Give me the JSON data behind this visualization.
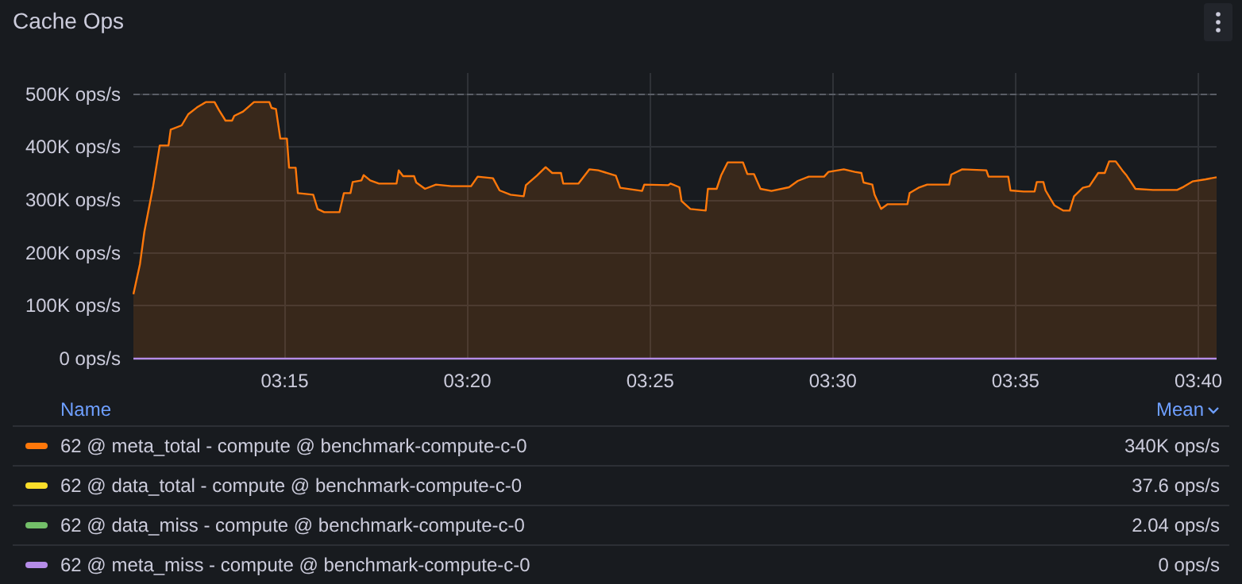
{
  "chart_data": {
    "type": "area",
    "title": "Cache Ops",
    "legend": "bottom",
    "grid": true,
    "marker": "none",
    "line_style": "solid",
    "xlim": [
      3.181,
      3.675
    ],
    "xticks": [
      {
        "value": 3.25,
        "label": "03:15"
      },
      {
        "value": 3.3333,
        "label": "03:20"
      },
      {
        "value": 3.4167,
        "label": "03:25"
      },
      {
        "value": 3.5,
        "label": "03:30"
      },
      {
        "value": 3.5833,
        "label": "03:35"
      },
      {
        "value": 3.6667,
        "label": "03:40"
      }
    ],
    "ylim": [
      0,
      540000
    ],
    "yticks": [
      {
        "value": 0,
        "label": "0 ops/s"
      },
      {
        "value": 100000,
        "label": "100K ops/s"
      },
      {
        "value": 200000,
        "label": "200K ops/s"
      },
      {
        "value": 300000,
        "label": "300K ops/s"
      },
      {
        "value": 400000,
        "label": "400K ops/s"
      },
      {
        "value": 500000,
        "label": "500K ops/s"
      }
    ],
    "ref_lines": [
      {
        "axis": "y",
        "value": 500000,
        "color": "#5a5e66",
        "line_style": "dashed"
      }
    ],
    "annotations": [
      "Name",
      "Mean",
      "340K ops/s",
      "37.6 ops/s",
      "2.04 ops/s",
      "0 ops/s"
    ],
    "series": [
      {
        "name": "62 @ meta_total - compute @ benchmark-compute-c-0",
        "color": "#ff780a",
        "x": [
          3.181,
          3.184,
          3.186,
          3.19,
          3.193,
          3.197,
          3.198,
          3.203,
          3.206,
          3.21,
          3.214,
          3.218,
          3.22,
          3.223,
          3.226,
          3.227,
          3.231,
          3.236,
          3.243,
          3.244,
          3.246,
          3.248,
          3.251,
          3.252,
          3.255,
          3.256,
          3.263,
          3.265,
          3.268,
          3.275,
          3.277,
          3.28,
          3.281,
          3.285,
          3.286,
          3.289,
          3.293,
          3.301,
          3.302,
          3.304,
          3.309,
          3.31,
          3.314,
          3.319,
          3.326,
          3.335,
          3.338,
          3.345,
          3.348,
          3.353,
          3.359,
          3.36,
          3.365,
          3.369,
          3.372,
          3.376,
          3.377,
          3.384,
          3.389,
          3.393,
          3.401,
          3.403,
          3.413,
          3.414,
          3.425,
          3.426,
          3.43,
          3.431,
          3.435,
          3.442,
          3.443,
          3.447,
          3.449,
          3.452,
          3.459,
          3.461,
          3.464,
          3.467,
          3.472,
          3.48,
          3.484,
          3.489,
          3.496,
          3.498,
          3.505,
          3.51,
          3.513,
          3.514,
          3.518,
          3.519,
          3.522,
          3.525,
          3.534,
          3.535,
          3.539,
          3.543,
          3.553,
          3.554,
          3.559,
          3.57,
          3.571,
          3.58,
          3.581,
          3.587,
          3.592,
          3.593,
          3.596,
          3.597,
          3.601,
          3.605,
          3.608,
          3.61,
          3.614,
          3.617,
          3.621,
          3.624,
          3.626,
          3.629,
          3.632,
          3.634,
          3.638,
          3.646,
          3.657,
          3.66,
          3.664,
          3.67,
          3.675
        ],
        "values": [
          122000,
          179000,
          240000,
          326000,
          403000,
          403000,
          433000,
          441000,
          462000,
          475000,
          485000,
          485000,
          470000,
          450000,
          450000,
          459000,
          467000,
          485000,
          485000,
          474000,
          472000,
          416000,
          416000,
          361000,
          361000,
          313000,
          310000,
          283000,
          277000,
          277000,
          313000,
          313000,
          334000,
          337000,
          347000,
          337000,
          331000,
          331000,
          356000,
          345000,
          345000,
          333000,
          321000,
          329000,
          326000,
          326000,
          344000,
          341000,
          318000,
          310000,
          307000,
          328000,
          346000,
          362000,
          351000,
          351000,
          331000,
          331000,
          358000,
          356000,
          346000,
          323000,
          317000,
          329000,
          328000,
          331000,
          324000,
          298000,
          283000,
          280000,
          321000,
          321000,
          346000,
          371000,
          371000,
          349000,
          349000,
          321000,
          317000,
          324000,
          336000,
          344000,
          344000,
          353000,
          358000,
          353000,
          351000,
          333000,
          329000,
          310000,
          283000,
          292000,
          292000,
          313000,
          323000,
          329000,
          329000,
          348000,
          358000,
          356000,
          344000,
          344000,
          318000,
          316000,
          316000,
          334000,
          334000,
          318000,
          290000,
          280000,
          280000,
          307000,
          323000,
          326000,
          351000,
          351000,
          373000,
          373000,
          356000,
          346000,
          321000,
          319000,
          319000,
          325000,
          335000,
          339000,
          343000
        ]
      },
      {
        "name": "62 @ data_total - compute @ benchmark-compute-c-0",
        "type": "line",
        "color": "#fade2a"
      },
      {
        "name": "62 @ data_miss - compute @ benchmark-compute-c-0",
        "type": "line",
        "color": "#73bf69"
      },
      {
        "name": "62 @ meta_miss - compute @ benchmark-compute-c-0",
        "type": "line",
        "color": "#b58ce8",
        "x": [
          3.181,
          3.675
        ],
        "values": [
          0,
          0
        ]
      }
    ]
  }
}
